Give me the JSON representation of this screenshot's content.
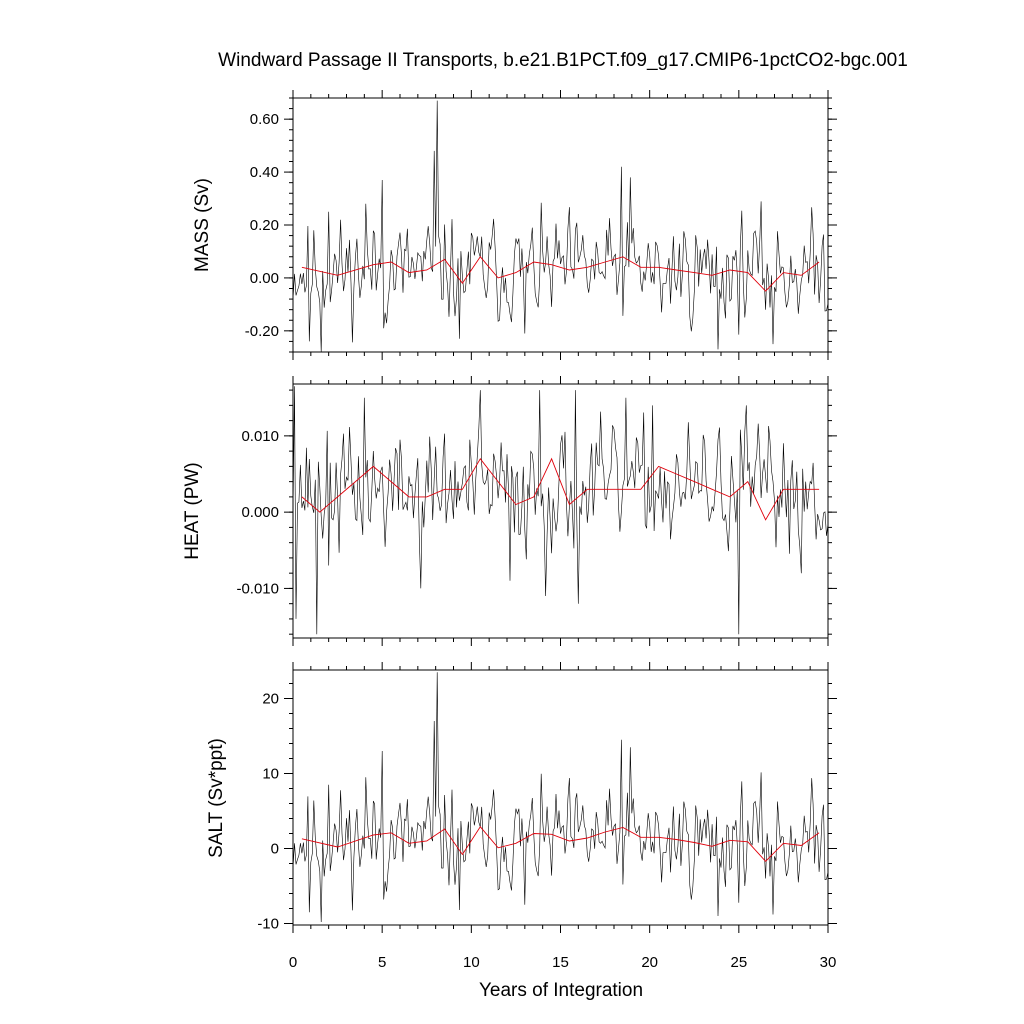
{
  "chart_data": {
    "type": "line",
    "title": "Windward Passage II Transports, b.e21.B1PCT.f09_g17.CMIP6-1pctCO2-bgc.001",
    "xlabel": "Years of Integration",
    "xlim": [
      0,
      30
    ],
    "x_ticks": [
      0,
      5,
      10,
      15,
      20,
      25,
      30
    ],
    "x_tick_labels": [
      "0",
      "5",
      "10",
      "15",
      "20",
      "25",
      "30"
    ],
    "grid": false,
    "panels": [
      {
        "id": "mass",
        "ylabel": "MASS (Sv)",
        "ylim": [
          -0.28,
          0.68
        ],
        "y_ticks": [
          -0.2,
          0.0,
          0.2,
          0.4,
          0.6
        ],
        "y_tick_labels": [
          "-0.20",
          "0.00",
          "0.20",
          "0.40",
          "0.60"
        ],
        "annual_mean": {
          "x": [
            0.5,
            2.5,
            4.5,
            5.5,
            6.5,
            7.5,
            8.5,
            9.5,
            10.5,
            11.5,
            12.5,
            13.5,
            14.5,
            15.5,
            16.5,
            17.5,
            18.5,
            19.5,
            20.5,
            21.5,
            22.5,
            23.5,
            24.5,
            25.5,
            26.5,
            27.5,
            28.5,
            29.5
          ],
          "y": [
            0.04,
            0.01,
            0.05,
            0.06,
            0.02,
            0.03,
            0.07,
            -0.02,
            0.08,
            0.0,
            0.02,
            0.06,
            0.05,
            0.03,
            0.04,
            0.06,
            0.08,
            0.04,
            0.04,
            0.03,
            0.02,
            0.01,
            0.03,
            0.02,
            -0.05,
            0.02,
            0.01,
            0.06
          ]
        },
        "monthly": {
          "base": 0.03,
          "amp": 0.11,
          "seed": 11,
          "spikes": [
            [
              0.9,
              -0.24
            ],
            [
              1.6,
              -0.29
            ],
            [
              2.0,
              0.25
            ],
            [
              4.1,
              0.28
            ],
            [
              5.0,
              0.37
            ],
            [
              5.1,
              -0.19
            ],
            [
              7.9,
              0.48
            ],
            [
              8.1,
              0.67
            ],
            [
              9.3,
              -0.23
            ],
            [
              13.0,
              -0.21
            ],
            [
              18.4,
              0.42
            ],
            [
              18.9,
              0.38
            ],
            [
              20.7,
              -0.13
            ],
            [
              23.8,
              -0.27
            ],
            [
              26.5,
              -0.12
            ],
            [
              26.9,
              -0.25
            ]
          ]
        }
      },
      {
        "id": "heat",
        "ylabel": "HEAT (PW)",
        "ylim": [
          -0.0165,
          0.0168
        ],
        "y_ticks": [
          -0.01,
          0.0,
          0.01
        ],
        "y_tick_labels": [
          "-0.010",
          "0.000",
          "0.010"
        ],
        "annual_mean": {
          "x": [
            0.5,
            1.5,
            2.5,
            4.5,
            6.5,
            7.5,
            8.5,
            9.5,
            10.5,
            11.5,
            12.5,
            13.5,
            14.5,
            15.5,
            16.5,
            17.5,
            18.5,
            19.5,
            20.5,
            21.5,
            22.5,
            23.5,
            24.5,
            25.5,
            26.5,
            27.5,
            28.5,
            29.5
          ],
          "y": [
            0.002,
            0.0,
            0.002,
            0.006,
            0.002,
            0.002,
            0.003,
            0.003,
            0.007,
            0.004,
            0.001,
            0.002,
            0.007,
            0.001,
            0.003,
            0.003,
            0.003,
            0.003,
            0.006,
            0.005,
            0.004,
            0.003,
            0.002,
            0.004,
            -0.001,
            0.003,
            0.003,
            0.003
          ]
        },
        "monthly": {
          "base": 0.003,
          "amp": 0.0045,
          "seed": 37,
          "spikes": [
            [
              0.05,
              0.0165
            ],
            [
              0.2,
              -0.014
            ],
            [
              1.3,
              -0.016
            ],
            [
              2.0,
              -0.007
            ],
            [
              4.0,
              0.015
            ],
            [
              7.2,
              -0.01
            ],
            [
              10.5,
              0.016
            ],
            [
              12.2,
              -0.009
            ],
            [
              13.8,
              0.016
            ],
            [
              14.2,
              -0.011
            ],
            [
              15.8,
              0.016
            ],
            [
              16.0,
              -0.012
            ],
            [
              18.7,
              0.015
            ],
            [
              20.2,
              0.014
            ],
            [
              25.0,
              -0.016
            ],
            [
              25.4,
              0.014
            ],
            [
              28.5,
              -0.008
            ]
          ]
        }
      },
      {
        "id": "salt",
        "ylabel": "SALT (Sv*ppt)",
        "ylim": [
          -10.2,
          23.8
        ],
        "y_ticks": [
          -10,
          0,
          10,
          20
        ],
        "y_tick_labels": [
          "-10",
          "0",
          "10",
          "20"
        ],
        "annual_mean": {
          "x": [
            0.5,
            2.5,
            4.5,
            5.5,
            6.5,
            7.5,
            8.5,
            9.5,
            10.5,
            11.5,
            12.5,
            13.5,
            14.5,
            15.5,
            16.5,
            17.5,
            18.5,
            19.5,
            20.5,
            21.5,
            22.5,
            23.5,
            24.5,
            25.5,
            26.5,
            27.5,
            28.5,
            29.5
          ],
          "y": [
            1.3,
            0.2,
            1.8,
            2.1,
            0.7,
            1.0,
            2.6,
            -0.8,
            2.9,
            0.1,
            0.7,
            2.0,
            1.9,
            1.0,
            1.4,
            2.2,
            2.8,
            1.5,
            1.5,
            1.2,
            0.8,
            0.3,
            1.1,
            0.9,
            -1.7,
            0.7,
            0.4,
            2.1
          ]
        },
        "monthly": {
          "base": 1.2,
          "amp": 3.8,
          "seed": 11,
          "spikes": [
            [
              0.9,
              -8.5
            ],
            [
              1.6,
              -9.8
            ],
            [
              2.0,
              8.5
            ],
            [
              4.1,
              9.5
            ],
            [
              5.0,
              13.0
            ],
            [
              5.1,
              -6.8
            ],
            [
              7.9,
              17.0
            ],
            [
              8.1,
              23.5
            ],
            [
              9.3,
              -8.2
            ],
            [
              13.0,
              -7.5
            ],
            [
              18.4,
              14.5
            ],
            [
              18.9,
              13.5
            ],
            [
              20.7,
              -4.5
            ],
            [
              23.8,
              -9.0
            ],
            [
              26.5,
              -4.0
            ],
            [
              26.9,
              -8.8
            ]
          ]
        }
      }
    ]
  }
}
